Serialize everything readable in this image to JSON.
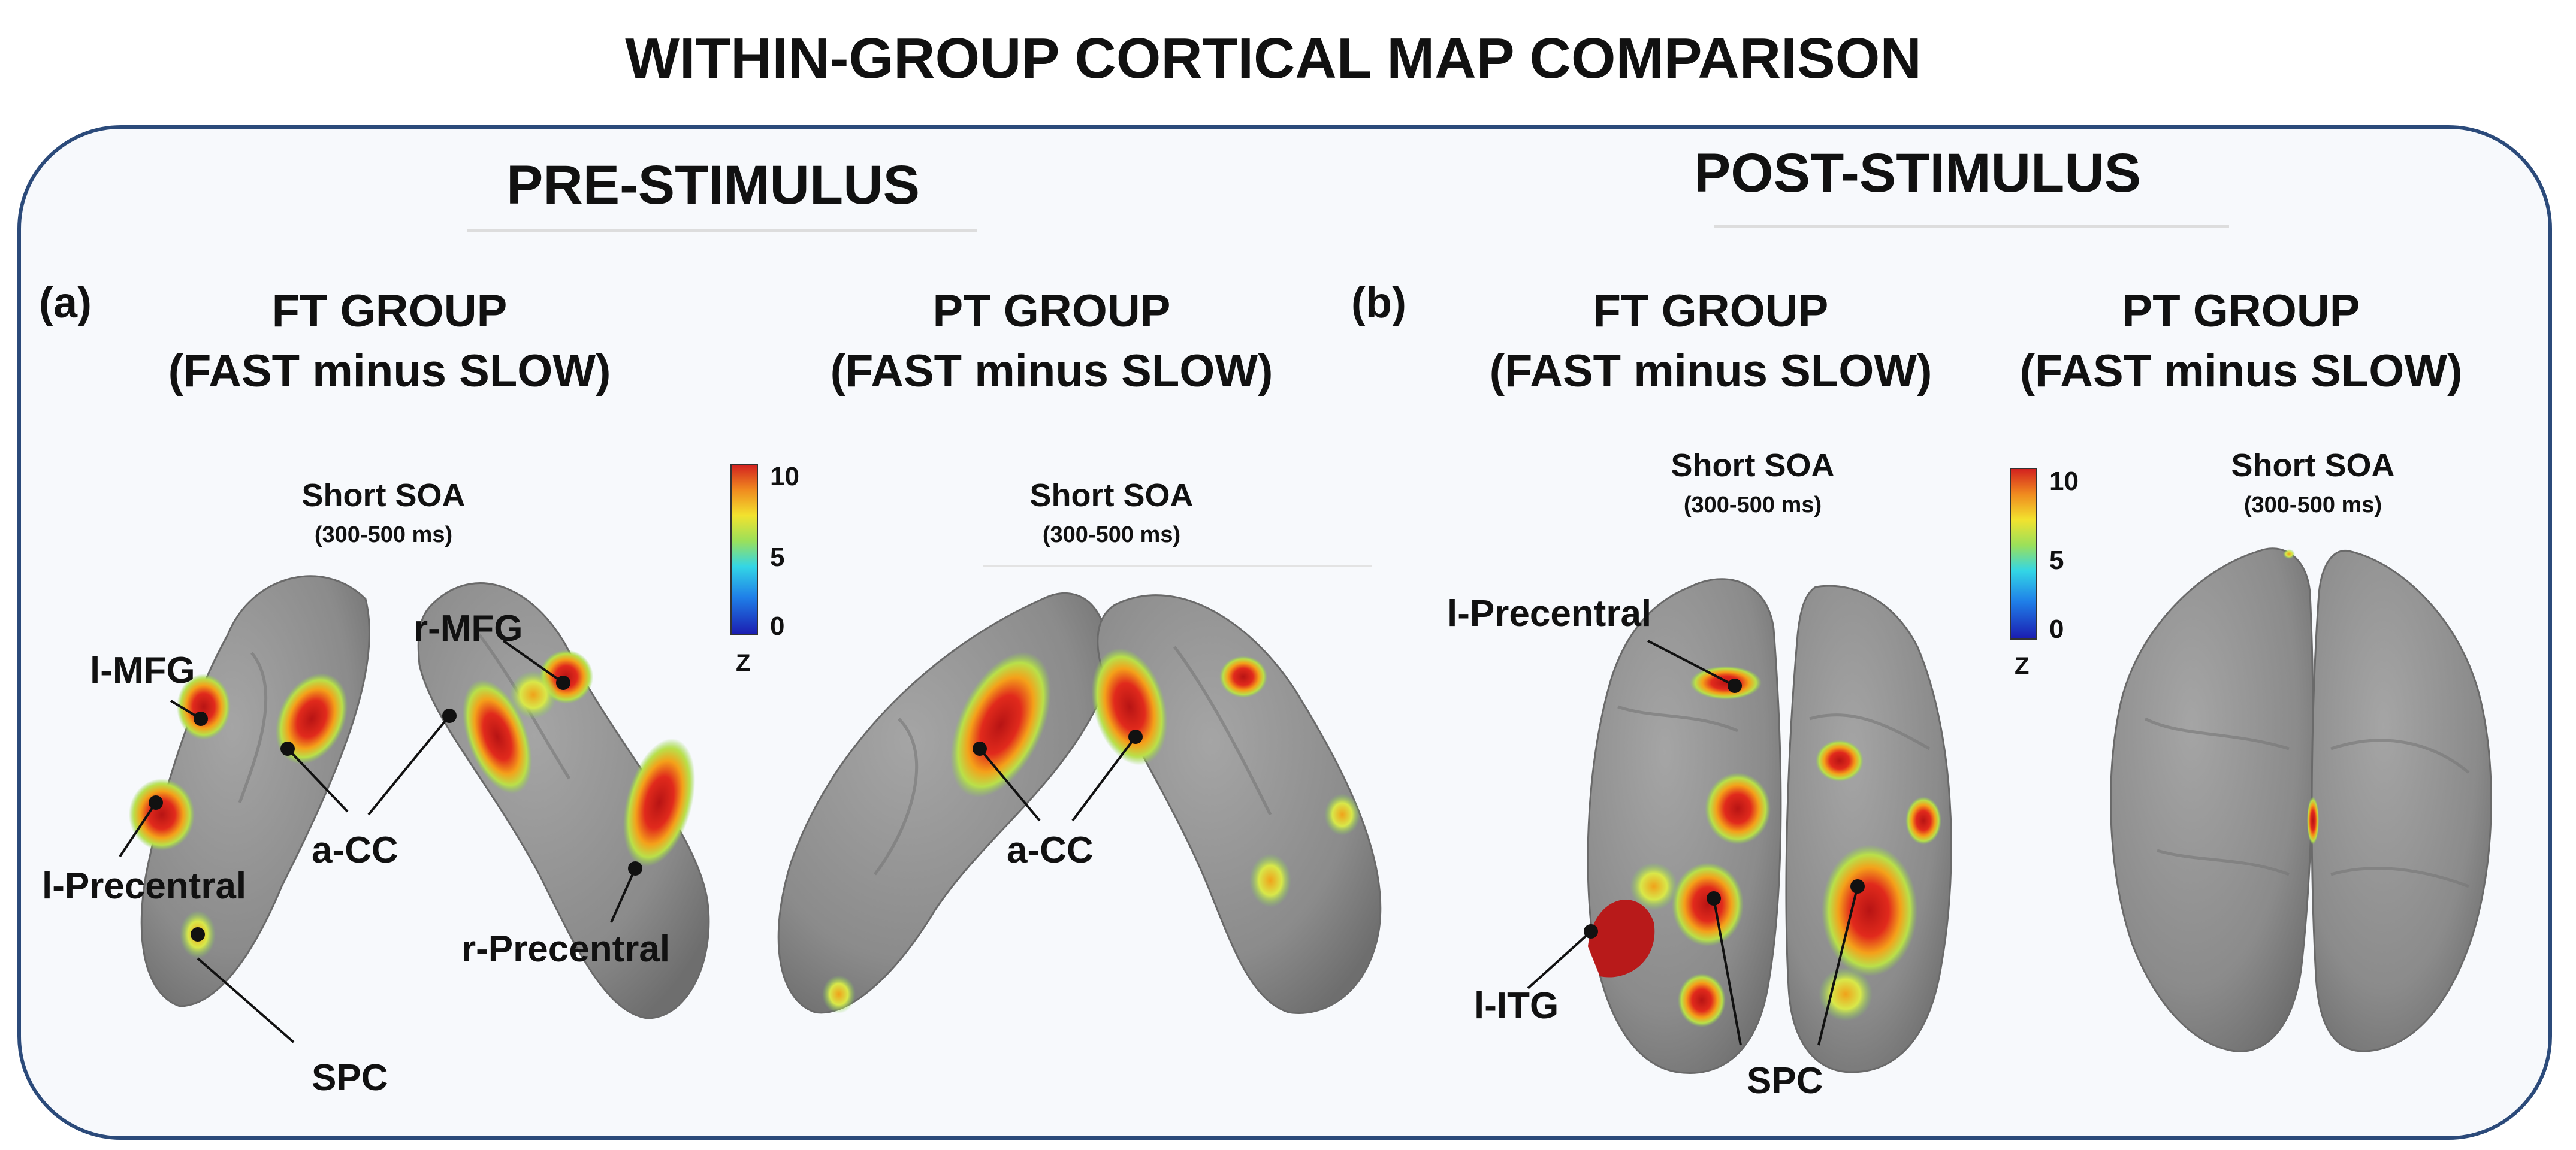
{
  "title": "WITHIN-GROUP CORTICAL MAP COMPARISON",
  "sections": {
    "pre": {
      "heading": "PRE-STIMULUS"
    },
    "post": {
      "heading": "POST-STIMULUS"
    }
  },
  "panels": {
    "a": {
      "letter": "(a)"
    },
    "b": {
      "letter": "(b)"
    }
  },
  "groups": {
    "ft_pre": {
      "line1": "FT GROUP",
      "line2": "(FAST minus SLOW)",
      "soa": "Short SOA",
      "window": "(300-500 ms)"
    },
    "pt_pre": {
      "line1": "PT GROUP",
      "line2": "(FAST minus SLOW)",
      "soa": "Short SOA",
      "window": "(300-500 ms)"
    },
    "ft_post": {
      "line1": "FT GROUP",
      "line2": "(FAST minus SLOW)",
      "soa": "Short SOA",
      "window": "(300-500 ms)"
    },
    "pt_post": {
      "line1": "PT GROUP",
      "line2": "(FAST minus SLOW)",
      "soa": "Short SOA",
      "window": "(300-500 ms)"
    }
  },
  "colorbar": {
    "max": "10",
    "mid": "5",
    "min": "0",
    "unit": "Z"
  },
  "labels": {
    "l_mfg": "l-MFG",
    "r_mfg": "r-MFG",
    "a_cc_left": "a-CC",
    "l_precentral_a": "l-Precentral",
    "r_precentral": "r-Precentral",
    "spc_a": "SPC",
    "a_cc_pt": "a-CC",
    "l_precentral_b": "l-Precentral",
    "l_itg": "l-ITG",
    "spc_b": "SPC"
  },
  "colors": {
    "cortex": "#8e8e8e",
    "panel_border": "#2b4a7a",
    "panel_bg": "#f7f9fc",
    "hot": "#c81e1e",
    "warm": "#f5a21b",
    "cool": "#a6d94a"
  }
}
